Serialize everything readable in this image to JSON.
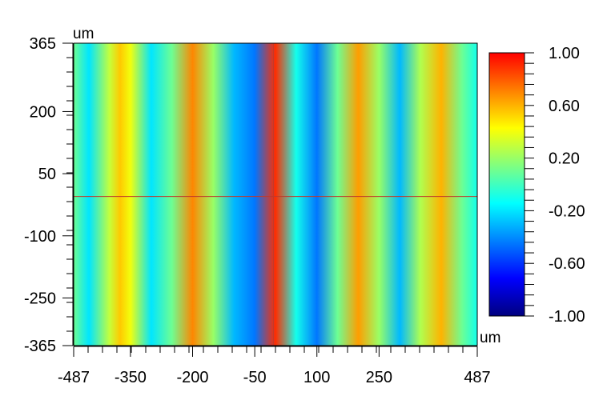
{
  "chart_data": {
    "type": "heatmap",
    "title": "",
    "xunit": "um",
    "yunit": "um",
    "xlim": [
      -487,
      487
    ],
    "ylim": [
      -365,
      365
    ],
    "xticks": [
      -487,
      -350,
      -200,
      -50,
      100,
      250,
      487
    ],
    "yticks": [
      365,
      200,
      50,
      -100,
      -250,
      -365
    ],
    "colorbar": {
      "range": [
        -1.0,
        1.0
      ],
      "ticks": [
        "1.00",
        "0.60",
        "0.20",
        "-0.20",
        "-0.60",
        "-1.00"
      ],
      "tick_values": [
        1.0,
        0.6,
        0.2,
        -0.2,
        -0.6,
        -1.0
      ],
      "colormap": [
        "#00007f",
        "#0000ff",
        "#0080ff",
        "#00ffff",
        "#80ff80",
        "#ffff00",
        "#ff8000",
        "#ff0000"
      ]
    },
    "field": {
      "description_values": "vertical fringe pattern; value varies along x, nearly constant along y",
      "x_positions": [
        -487,
        -450,
        -400,
        -375,
        -350,
        -300,
        -250,
        -200,
        -150,
        -100,
        -50,
        0,
        50,
        100,
        150,
        200,
        250,
        300,
        350,
        400,
        450,
        487
      ],
      "values": [
        0.1,
        -0.2,
        0.3,
        0.55,
        0.4,
        -0.2,
        0.1,
        0.7,
        0.2,
        -0.3,
        -0.45,
        0.9,
        -0.1,
        -0.45,
        0.1,
        0.65,
        0.2,
        -0.3,
        0.25,
        0.6,
        0.1,
        -0.1
      ]
    },
    "crosshair": {
      "x": -5,
      "y": -5,
      "color": "#c0392b"
    }
  }
}
